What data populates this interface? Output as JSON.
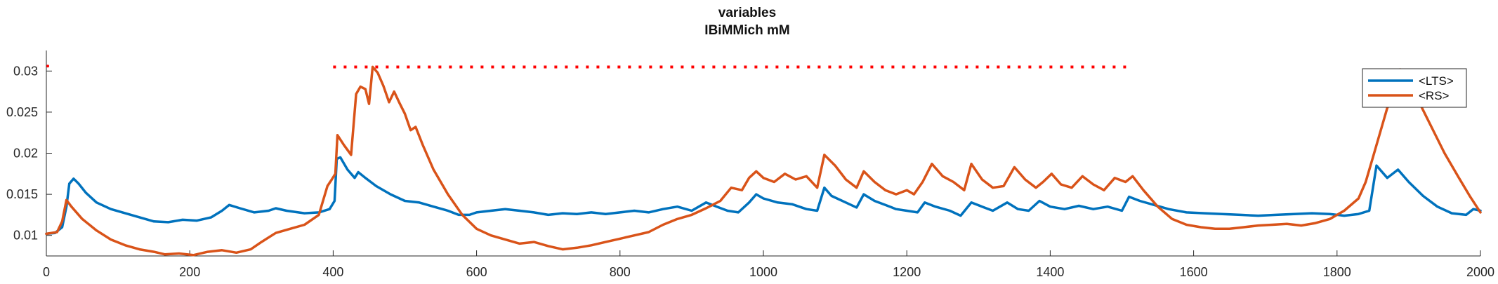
{
  "chart_data": {
    "type": "line",
    "title": "variables",
    "subtitle": "IBiMMich mM",
    "xlabel": "",
    "ylabel": "",
    "xlim": [
      0,
      2000
    ],
    "ylim": [
      0.0075,
      0.0325
    ],
    "x_ticks": [
      0,
      200,
      400,
      600,
      800,
      1000,
      1200,
      1400,
      1600,
      1800,
      2000
    ],
    "x_tick_labels": [
      "0",
      "200",
      "400",
      "600",
      "800",
      "1000",
      "1200",
      "1400",
      "1600",
      "1800",
      "2000"
    ],
    "y_ticks": [
      0.01,
      0.015,
      0.02,
      0.025,
      0.03
    ],
    "y_tick_labels": [
      "0.01",
      "0.015",
      "0.02",
      "0.025",
      "0.03"
    ],
    "grid": false,
    "legend_position": "top-right",
    "series": [
      {
        "name": "<LTS>",
        "color": "#0072BD",
        "points": [
          [
            0,
            0.0102
          ],
          [
            12,
            0.0103
          ],
          [
            22,
            0.011
          ],
          [
            28,
            0.0135
          ],
          [
            32,
            0.0163
          ],
          [
            38,
            0.0169
          ],
          [
            45,
            0.0163
          ],
          [
            55,
            0.0152
          ],
          [
            70,
            0.014
          ],
          [
            90,
            0.0132
          ],
          [
            110,
            0.0127
          ],
          [
            130,
            0.0122
          ],
          [
            150,
            0.0117
          ],
          [
            170,
            0.0116
          ],
          [
            190,
            0.0119
          ],
          [
            210,
            0.0118
          ],
          [
            230,
            0.0122
          ],
          [
            245,
            0.013
          ],
          [
            255,
            0.0137
          ],
          [
            270,
            0.0133
          ],
          [
            290,
            0.0128
          ],
          [
            310,
            0.013
          ],
          [
            320,
            0.0133
          ],
          [
            335,
            0.013
          ],
          [
            360,
            0.0127
          ],
          [
            380,
            0.0128
          ],
          [
            395,
            0.0132
          ],
          [
            402,
            0.0142
          ],
          [
            405,
            0.0193
          ],
          [
            410,
            0.0195
          ],
          [
            420,
            0.018
          ],
          [
            430,
            0.017
          ],
          [
            435,
            0.0177
          ],
          [
            445,
            0.017
          ],
          [
            460,
            0.016
          ],
          [
            480,
            0.015
          ],
          [
            500,
            0.0142
          ],
          [
            520,
            0.014
          ],
          [
            540,
            0.0135
          ],
          [
            560,
            0.013
          ],
          [
            575,
            0.0125
          ],
          [
            590,
            0.0125
          ],
          [
            600,
            0.0128
          ],
          [
            620,
            0.013
          ],
          [
            640,
            0.0132
          ],
          [
            660,
            0.013
          ],
          [
            680,
            0.0128
          ],
          [
            700,
            0.0125
          ],
          [
            720,
            0.0127
          ],
          [
            740,
            0.0126
          ],
          [
            760,
            0.0128
          ],
          [
            780,
            0.0126
          ],
          [
            800,
            0.0128
          ],
          [
            820,
            0.013
          ],
          [
            840,
            0.0128
          ],
          [
            860,
            0.0132
          ],
          [
            880,
            0.0135
          ],
          [
            900,
            0.013
          ],
          [
            920,
            0.014
          ],
          [
            935,
            0.0135
          ],
          [
            950,
            0.013
          ],
          [
            965,
            0.0128
          ],
          [
            980,
            0.014
          ],
          [
            990,
            0.015
          ],
          [
            1000,
            0.0145
          ],
          [
            1020,
            0.014
          ],
          [
            1040,
            0.0138
          ],
          [
            1060,
            0.0132
          ],
          [
            1075,
            0.013
          ],
          [
            1085,
            0.0158
          ],
          [
            1095,
            0.0148
          ],
          [
            1115,
            0.014
          ],
          [
            1130,
            0.0134
          ],
          [
            1140,
            0.015
          ],
          [
            1155,
            0.0142
          ],
          [
            1170,
            0.0137
          ],
          [
            1185,
            0.0132
          ],
          [
            1200,
            0.013
          ],
          [
            1215,
            0.0128
          ],
          [
            1225,
            0.014
          ],
          [
            1240,
            0.0135
          ],
          [
            1260,
            0.013
          ],
          [
            1275,
            0.0124
          ],
          [
            1290,
            0.014
          ],
          [
            1305,
            0.0135
          ],
          [
            1320,
            0.013
          ],
          [
            1340,
            0.014
          ],
          [
            1355,
            0.0132
          ],
          [
            1370,
            0.013
          ],
          [
            1385,
            0.0142
          ],
          [
            1400,
            0.0135
          ],
          [
            1420,
            0.0132
          ],
          [
            1440,
            0.0136
          ],
          [
            1460,
            0.0132
          ],
          [
            1480,
            0.0135
          ],
          [
            1500,
            0.013
          ],
          [
            1510,
            0.0147
          ],
          [
            1525,
            0.0142
          ],
          [
            1545,
            0.0137
          ],
          [
            1565,
            0.0132
          ],
          [
            1590,
            0.0128
          ],
          [
            1615,
            0.0127
          ],
          [
            1640,
            0.0126
          ],
          [
            1665,
            0.0125
          ],
          [
            1690,
            0.0124
          ],
          [
            1715,
            0.0125
          ],
          [
            1740,
            0.0126
          ],
          [
            1765,
            0.0127
          ],
          [
            1790,
            0.0126
          ],
          [
            1810,
            0.0124
          ],
          [
            1830,
            0.0126
          ],
          [
            1845,
            0.013
          ],
          [
            1855,
            0.0185
          ],
          [
            1870,
            0.017
          ],
          [
            1885,
            0.018
          ],
          [
            1900,
            0.0165
          ],
          [
            1920,
            0.0148
          ],
          [
            1940,
            0.0135
          ],
          [
            1960,
            0.0127
          ],
          [
            1980,
            0.0125
          ],
          [
            1990,
            0.0132
          ],
          [
            2000,
            0.013
          ]
        ]
      },
      {
        "name": "<RS>",
        "color": "#D95319",
        "points": [
          [
            0,
            0.0102
          ],
          [
            15,
            0.0104
          ],
          [
            22,
            0.0117
          ],
          [
            28,
            0.0143
          ],
          [
            35,
            0.0135
          ],
          [
            50,
            0.012
          ],
          [
            70,
            0.0106
          ],
          [
            90,
            0.0095
          ],
          [
            110,
            0.0088
          ],
          [
            130,
            0.0083
          ],
          [
            150,
            0.008
          ],
          [
            165,
            0.0077
          ],
          [
            185,
            0.0078
          ],
          [
            205,
            0.0076
          ],
          [
            225,
            0.008
          ],
          [
            245,
            0.0082
          ],
          [
            265,
            0.0079
          ],
          [
            285,
            0.0083
          ],
          [
            300,
            0.0092
          ],
          [
            320,
            0.0103
          ],
          [
            340,
            0.0108
          ],
          [
            360,
            0.0113
          ],
          [
            380,
            0.0125
          ],
          [
            392,
            0.016
          ],
          [
            398,
            0.0168
          ],
          [
            403,
            0.0175
          ],
          [
            406,
            0.0222
          ],
          [
            415,
            0.021
          ],
          [
            425,
            0.0198
          ],
          [
            432,
            0.0272
          ],
          [
            438,
            0.0281
          ],
          [
            445,
            0.0278
          ],
          [
            450,
            0.026
          ],
          [
            455,
            0.0305
          ],
          [
            462,
            0.0298
          ],
          [
            470,
            0.0282
          ],
          [
            478,
            0.0262
          ],
          [
            485,
            0.0275
          ],
          [
            492,
            0.0262
          ],
          [
            500,
            0.0248
          ],
          [
            508,
            0.0228
          ],
          [
            515,
            0.0232
          ],
          [
            525,
            0.021
          ],
          [
            540,
            0.018
          ],
          [
            560,
            0.015
          ],
          [
            580,
            0.0125
          ],
          [
            600,
            0.0108
          ],
          [
            620,
            0.01
          ],
          [
            640,
            0.0095
          ],
          [
            660,
            0.009
          ],
          [
            680,
            0.0092
          ],
          [
            700,
            0.0087
          ],
          [
            720,
            0.0083
          ],
          [
            740,
            0.0085
          ],
          [
            760,
            0.0088
          ],
          [
            780,
            0.0092
          ],
          [
            800,
            0.0096
          ],
          [
            820,
            0.01
          ],
          [
            840,
            0.0104
          ],
          [
            860,
            0.0113
          ],
          [
            880,
            0.012
          ],
          [
            900,
            0.0125
          ],
          [
            920,
            0.0133
          ],
          [
            940,
            0.0142
          ],
          [
            955,
            0.0158
          ],
          [
            970,
            0.0155
          ],
          [
            980,
            0.017
          ],
          [
            990,
            0.0178
          ],
          [
            1000,
            0.017
          ],
          [
            1015,
            0.0165
          ],
          [
            1030,
            0.0175
          ],
          [
            1045,
            0.0168
          ],
          [
            1060,
            0.0172
          ],
          [
            1075,
            0.0158
          ],
          [
            1085,
            0.0198
          ],
          [
            1100,
            0.0185
          ],
          [
            1115,
            0.0168
          ],
          [
            1130,
            0.0158
          ],
          [
            1140,
            0.0178
          ],
          [
            1155,
            0.0165
          ],
          [
            1170,
            0.0155
          ],
          [
            1185,
            0.015
          ],
          [
            1200,
            0.0155
          ],
          [
            1210,
            0.015
          ],
          [
            1222,
            0.0165
          ],
          [
            1235,
            0.0187
          ],
          [
            1250,
            0.0172
          ],
          [
            1265,
            0.0165
          ],
          [
            1280,
            0.0155
          ],
          [
            1290,
            0.0187
          ],
          [
            1305,
            0.0168
          ],
          [
            1320,
            0.0158
          ],
          [
            1335,
            0.016
          ],
          [
            1350,
            0.0183
          ],
          [
            1365,
            0.0168
          ],
          [
            1380,
            0.0158
          ],
          [
            1390,
            0.0165
          ],
          [
            1402,
            0.0175
          ],
          [
            1415,
            0.0162
          ],
          [
            1430,
            0.0158
          ],
          [
            1445,
            0.0172
          ],
          [
            1460,
            0.0162
          ],
          [
            1475,
            0.0155
          ],
          [
            1490,
            0.017
          ],
          [
            1505,
            0.0165
          ],
          [
            1515,
            0.0172
          ],
          [
            1530,
            0.0155
          ],
          [
            1550,
            0.0135
          ],
          [
            1570,
            0.012
          ],
          [
            1590,
            0.0113
          ],
          [
            1610,
            0.011
          ],
          [
            1630,
            0.0108
          ],
          [
            1650,
            0.0108
          ],
          [
            1670,
            0.011
          ],
          [
            1690,
            0.0112
          ],
          [
            1710,
            0.0113
          ],
          [
            1730,
            0.0114
          ],
          [
            1750,
            0.0112
          ],
          [
            1770,
            0.0115
          ],
          [
            1790,
            0.012
          ],
          [
            1810,
            0.013
          ],
          [
            1830,
            0.0145
          ],
          [
            1840,
            0.0165
          ],
          [
            1850,
            0.0195
          ],
          [
            1860,
            0.0225
          ],
          [
            1870,
            0.0255
          ],
          [
            1880,
            0.027
          ],
          [
            1888,
            0.0302
          ],
          [
            1895,
            0.0295
          ],
          [
            1910,
            0.027
          ],
          [
            1930,
            0.0235
          ],
          [
            1950,
            0.02
          ],
          [
            1970,
            0.017
          ],
          [
            1985,
            0.0148
          ],
          [
            2000,
            0.0128
          ]
        ]
      }
    ],
    "annotations": [
      {
        "type": "dotted-line",
        "color": "#FF0000",
        "x_start": 400,
        "x_end": 1510,
        "y": 0.0305
      },
      {
        "type": "point",
        "color": "#FF0000",
        "x": 0,
        "y": 0.0306
      }
    ]
  }
}
